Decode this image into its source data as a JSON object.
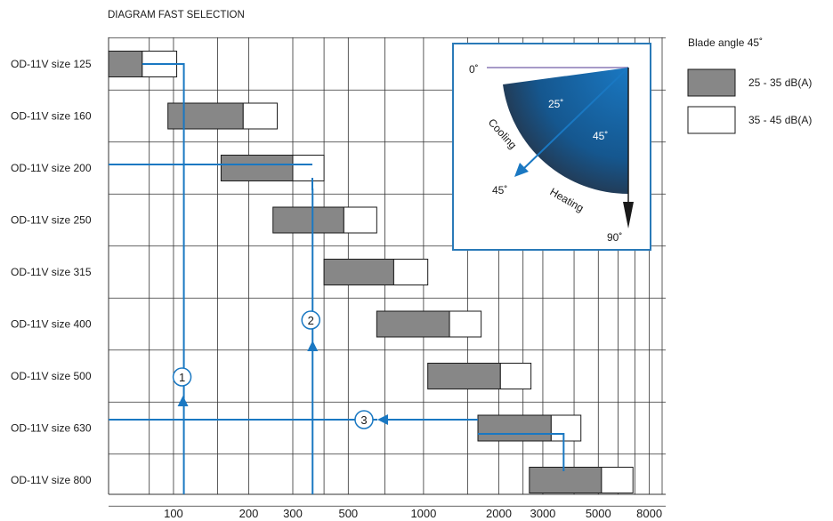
{
  "colors": {
    "accent": "#1a78c2",
    "bar_low": "#878787",
    "bar_high": "#ffffff",
    "grid": "#333333",
    "inset_border": "#2a7ab8",
    "fan_inner": "#1a78c2",
    "fan_outer": "#2a2a33"
  },
  "chart_data": {
    "type": "bar",
    "title": "DIAGRAM FAST SELECTION",
    "xlabel": "",
    "ylabel": "",
    "x_scale": "log",
    "xlim": [
      55,
      9300
    ],
    "x_ticks": [
      {
        "value": 100,
        "label": "100"
      },
      {
        "value": 200,
        "label": "200"
      },
      {
        "value": 300,
        "label": "300"
      },
      {
        "value": 500,
        "label": "500"
      },
      {
        "value": 1000,
        "label": "1000"
      },
      {
        "value": 2000,
        "label": "2000"
      },
      {
        "value": 3000,
        "label": "3000"
      },
      {
        "value": 5000,
        "label": "5000"
      },
      {
        "value": 8000,
        "label": "8000"
      }
    ],
    "grid_lines": [
      80,
      100,
      150,
      200,
      300,
      400,
      500,
      700,
      1000,
      1500,
      2000,
      2500,
      3000,
      4000,
      5000,
      6000,
      7000,
      8000,
      9000
    ],
    "categories": [
      "OD-11V size 125",
      "OD-11V size 160",
      "OD-11V size 200",
      "OD-11V size 250",
      "OD-11V size 315",
      "OD-11V size 400",
      "OD-11V size 500",
      "OD-11V size 630",
      "OD-11V size 800"
    ],
    "series": [
      {
        "name": "25 - 35 dB(A)",
        "ranges": [
          [
            55,
            75
          ],
          [
            95,
            190
          ],
          [
            155,
            300
          ],
          [
            250,
            480
          ],
          [
            400,
            760
          ],
          [
            650,
            1270
          ],
          [
            1040,
            2030
          ],
          [
            1650,
            3240
          ],
          [
            2650,
            5150
          ]
        ]
      },
      {
        "name": "35 - 45 dB(A)",
        "ranges": [
          [
            75,
            103
          ],
          [
            190,
            260
          ],
          [
            300,
            400
          ],
          [
            480,
            650
          ],
          [
            760,
            1040
          ],
          [
            1270,
            1700
          ],
          [
            2030,
            2690
          ],
          [
            3240,
            4260
          ],
          [
            5150,
            6880
          ]
        ]
      }
    ],
    "legend": {
      "title": "Blade angle 45˚",
      "position": "top-right",
      "items": [
        "25 - 35 dB(A)",
        "35 - 45 dB(A)"
      ]
    },
    "examples": [
      {
        "label": "1",
        "x": 110,
        "from_row": 8,
        "to_row": 0
      },
      {
        "label": "2",
        "x": 360,
        "from_row": 8,
        "to_row": 2
      },
      {
        "label": "3",
        "x": 2600,
        "row": 7
      }
    ],
    "inset": {
      "labels": {
        "deg0": "0˚",
        "deg25": "25˚",
        "deg45_inner": "45˚",
        "deg45_outer": "45˚",
        "deg90": "90˚",
        "cooling": "Cooling",
        "heating": "Heating"
      }
    }
  }
}
